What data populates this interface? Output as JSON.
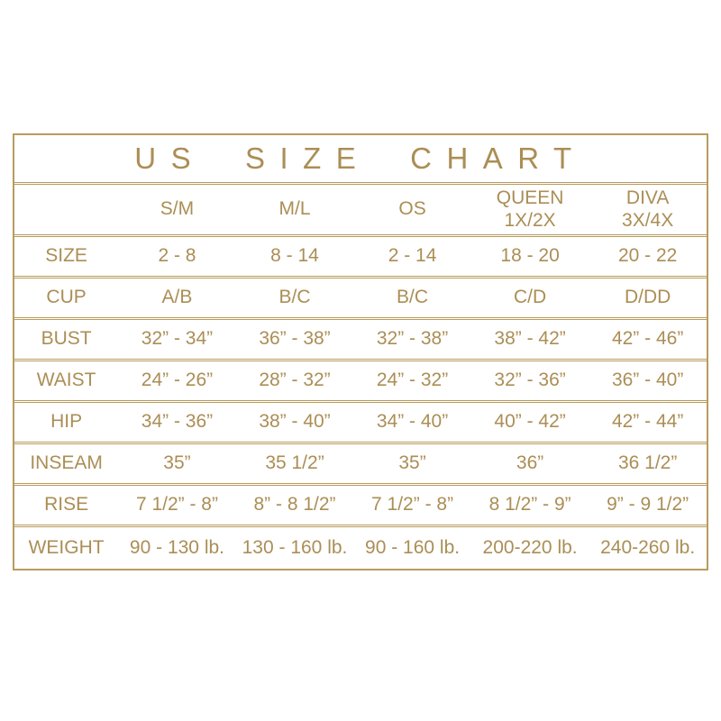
{
  "colors": {
    "gold_text": "#ab8e55",
    "gold_border": "#b89c5e",
    "background": "#ffffff"
  },
  "chart_data": {
    "type": "table",
    "title": "US SIZE CHART",
    "columns": [
      "",
      "S/M",
      "M/L",
      "OS",
      "QUEEN 1X/2X",
      "DIVA 3X/4X"
    ],
    "header_lines": [
      {
        "line1": "S/M",
        "line2": ""
      },
      {
        "line1": "M/L",
        "line2": ""
      },
      {
        "line1": "OS",
        "line2": ""
      },
      {
        "line1": "QUEEN",
        "line2": "1X/2X"
      },
      {
        "line1": "DIVA",
        "line2": "3X/4X"
      }
    ],
    "rows": [
      {
        "label": "SIZE",
        "values": [
          "2 - 8",
          "8 - 14",
          "2 - 14",
          "18 - 20",
          "20 - 22"
        ]
      },
      {
        "label": "CUP",
        "values": [
          "A/B",
          "B/C",
          "B/C",
          "C/D",
          "D/DD"
        ]
      },
      {
        "label": "BUST",
        "values": [
          "32” - 34”",
          "36” - 38”",
          "32” - 38”",
          "38” - 42”",
          "42” - 46”"
        ]
      },
      {
        "label": "WAIST",
        "values": [
          "24” - 26”",
          "28” - 32”",
          "24” - 32”",
          "32” - 36”",
          "36” - 40”"
        ]
      },
      {
        "label": "HIP",
        "values": [
          "34” - 36”",
          "38” - 40”",
          "34” - 40”",
          "40” - 42”",
          "42” - 44”"
        ]
      },
      {
        "label": "INSEAM",
        "values": [
          "35”",
          "35 1/2”",
          "35”",
          "36”",
          "36 1/2”"
        ]
      },
      {
        "label": "RISE",
        "values": [
          "7 1/2” - 8”",
          "8” - 8 1/2”",
          "7 1/2” - 8”",
          "8 1/2” - 9”",
          "9” - 9 1/2”"
        ]
      },
      {
        "label": "WEIGHT",
        "values": [
          "90 - 130 lb.",
          "130 - 160 lb.",
          "90 - 160 lb.",
          "200-220 lb.",
          "240-260 lb."
        ]
      }
    ]
  }
}
